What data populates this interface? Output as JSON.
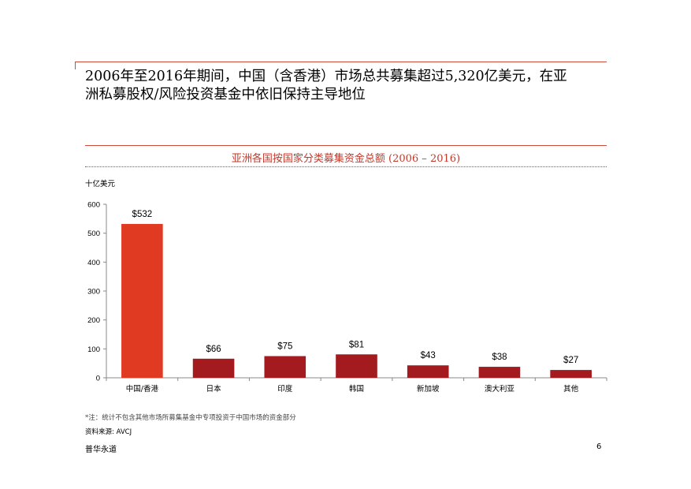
{
  "headline": {
    "line1": "2006年至2016年期间，中国（含香港）市场总共募集超过5,320亿美元，在亚",
    "line2": "洲私募股权/风险投资基金中依旧保持主导地位"
  },
  "chart_data": {
    "type": "bar",
    "title": "亚洲各国按国家分类募集资金总额 (2006 – 2016)",
    "ylabel": "十亿美元",
    "xlabel": "",
    "ylim": [
      0,
      600
    ],
    "yticks": [
      0,
      100,
      200,
      300,
      400,
      500,
      600
    ],
    "categories": [
      "中国/香港",
      "日本",
      "印度",
      "韩国",
      "新加坡",
      "澳大利亚",
      "其他"
    ],
    "values": [
      532,
      66,
      75,
      81,
      43,
      38,
      27
    ],
    "data_labels": [
      "$532",
      "$66",
      "$75",
      "$81",
      "$43",
      "$38",
      "$27"
    ],
    "colors": {
      "highlight": "#e03a22",
      "default": "#a31b1f",
      "axis": "#888888",
      "title": "#c0392b"
    },
    "grid": false,
    "legend": "none"
  },
  "footer": {
    "footnote": "*注：统计不包含其他市场所募集基金中专项投资于中国市场的资金部分",
    "source": "资料来源: AVCJ",
    "brand": "普华永道",
    "page_number": "6"
  }
}
